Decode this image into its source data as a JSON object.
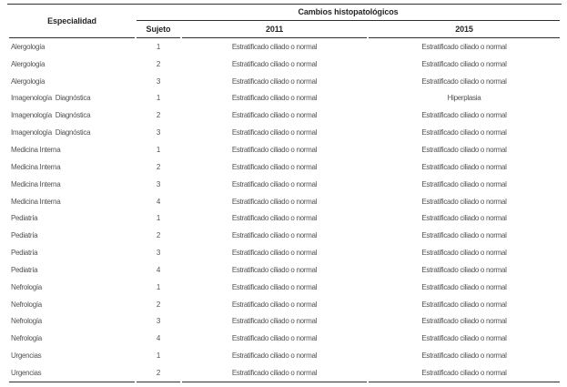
{
  "table": {
    "header": {
      "especialidad": "Especialidad",
      "group": "Cambios histopatológicos",
      "sujeto": "Sujeto",
      "col2011": "2011",
      "col2015": "2015"
    },
    "rows": [
      {
        "especialidad": "Alergología",
        "sujeto": "1",
        "y2011": "Estratificado ciliado o normal",
        "y2015": "Estratificado ciliado o normal"
      },
      {
        "especialidad": "Alergología",
        "sujeto": "2",
        "y2011": "Estratificado ciliado o normal",
        "y2015": "Estratificado ciliado o normal"
      },
      {
        "especialidad": "Alergología",
        "sujeto": "3",
        "y2011": "Estratificado ciliado o normal",
        "y2015": "Estratificado ciliado o normal"
      },
      {
        "especialidad": "Imagenología  Diagnóstica",
        "sujeto": "1",
        "y2011": "Estratificado ciliado o normal",
        "y2015": "Hiperplasia"
      },
      {
        "especialidad": "Imagenología  Diagnóstica",
        "sujeto": "2",
        "y2011": "Estratificado ciliado o normal",
        "y2015": "Estratificado ciliado o normal"
      },
      {
        "especialidad": "Imagenología  Diagnóstica",
        "sujeto": "3",
        "y2011": "Estratificado ciliado o normal",
        "y2015": "Estratificado ciliado o normal"
      },
      {
        "especialidad": "Medicina Interna",
        "sujeto": "1",
        "y2011": "Estratificado ciliado o normal",
        "y2015": "Estratificado ciliado o normal"
      },
      {
        "especialidad": "Medicina Interna",
        "sujeto": "2",
        "y2011": "Estratificado ciliado o normal",
        "y2015": "Estratificado ciliado o normal"
      },
      {
        "especialidad": "Medicina Interna",
        "sujeto": "3",
        "y2011": "Estratificado ciliado o normal",
        "y2015": "Estratificado ciliado o normal"
      },
      {
        "especialidad": "Medicina Interna",
        "sujeto": "4",
        "y2011": "Estratificado ciliado o normal",
        "y2015": "Estratificado ciliado o normal"
      },
      {
        "especialidad": "Pediatría",
        "sujeto": "1",
        "y2011": "Estratificado ciliado o normal",
        "y2015": "Estratificado ciliado o normal"
      },
      {
        "especialidad": "Pediatría",
        "sujeto": "2",
        "y2011": "Estratificado ciliado o normal",
        "y2015": "Estratificado ciliado o normal"
      },
      {
        "especialidad": "Pediatría",
        "sujeto": "3",
        "y2011": "Estratificado ciliado o normal",
        "y2015": "Estratificado ciliado o normal"
      },
      {
        "especialidad": "Pediatría",
        "sujeto": "4",
        "y2011": "Estratificado ciliado o normal",
        "y2015": "Estratificado ciliado o normal"
      },
      {
        "especialidad": "Nefrología",
        "sujeto": "1",
        "y2011": "Estratificado ciliado o normal",
        "y2015": "Estratificado ciliado o normal"
      },
      {
        "especialidad": "Nefrología",
        "sujeto": "2",
        "y2011": "Estratificado ciliado o normal",
        "y2015": "Estratificado ciliado o normal"
      },
      {
        "especialidad": "Nefrología",
        "sujeto": "3",
        "y2011": "Estratificado ciliado o normal",
        "y2015": "Estratificado ciliado o normal"
      },
      {
        "especialidad": "Nefrología",
        "sujeto": "4",
        "y2011": "Estratificado ciliado o normal",
        "y2015": "Estratificado ciliado o normal"
      },
      {
        "especialidad": "Urgencias",
        "sujeto": "1",
        "y2011": "Estratificado ciliado o normal",
        "y2015": "Estratificado ciliado o normal"
      },
      {
        "especialidad": "Urgencias",
        "sujeto": "2",
        "y2011": "Estratificado ciliado o normal",
        "y2015": "Estratificado ciliado o normal"
      }
    ]
  },
  "colors": {
    "background": "#ffffff",
    "rule": "#2f2f2f",
    "header_text": "#262626",
    "body_text": "#525252"
  }
}
